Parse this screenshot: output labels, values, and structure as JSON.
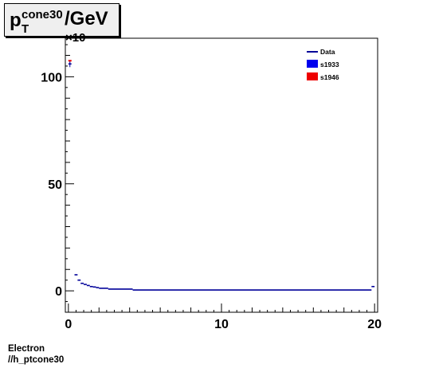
{
  "title": {
    "base": "p",
    "superscript": "cone30",
    "subscript": "T",
    "suffix": "/GeV"
  },
  "footer": {
    "line1": "Electron",
    "line2": "//h_ptcone30"
  },
  "chart_data": {
    "type": "line",
    "xlim": [
      -0.2,
      20.2
    ],
    "ylim": [
      -10,
      118
    ],
    "x_ticks": [
      0,
      10,
      20
    ],
    "y_ticks": [
      0,
      50,
      100
    ],
    "y_exponent_label": "×10",
    "grid": false,
    "legend_position": "top-right",
    "series": [
      {
        "name": "Data",
        "color": "#000099",
        "marker": "line",
        "bins": [
          [
            0.0,
            0.2,
            106
          ],
          [
            0.4,
            0.6,
            7.5
          ],
          [
            0.6,
            0.8,
            5
          ],
          [
            0.8,
            1.0,
            3.5
          ],
          [
            1.0,
            1.2,
            3
          ],
          [
            1.2,
            1.4,
            2.5
          ],
          [
            1.4,
            1.6,
            2
          ],
          [
            1.6,
            1.8,
            1.8
          ],
          [
            1.8,
            2.0,
            1.5
          ],
          [
            2.0,
            2.6,
            1.2
          ],
          [
            2.6,
            4.2,
            0.8
          ],
          [
            4.2,
            19.8,
            0.4
          ],
          [
            19.8,
            20.0,
            2
          ]
        ]
      },
      {
        "name": "s1933",
        "color": "#0000ee",
        "marker": "box"
      },
      {
        "name": "s1946",
        "color": "#ee0000",
        "marker": "box",
        "points": [
          [
            0.1,
            107.5
          ]
        ]
      }
    ]
  }
}
